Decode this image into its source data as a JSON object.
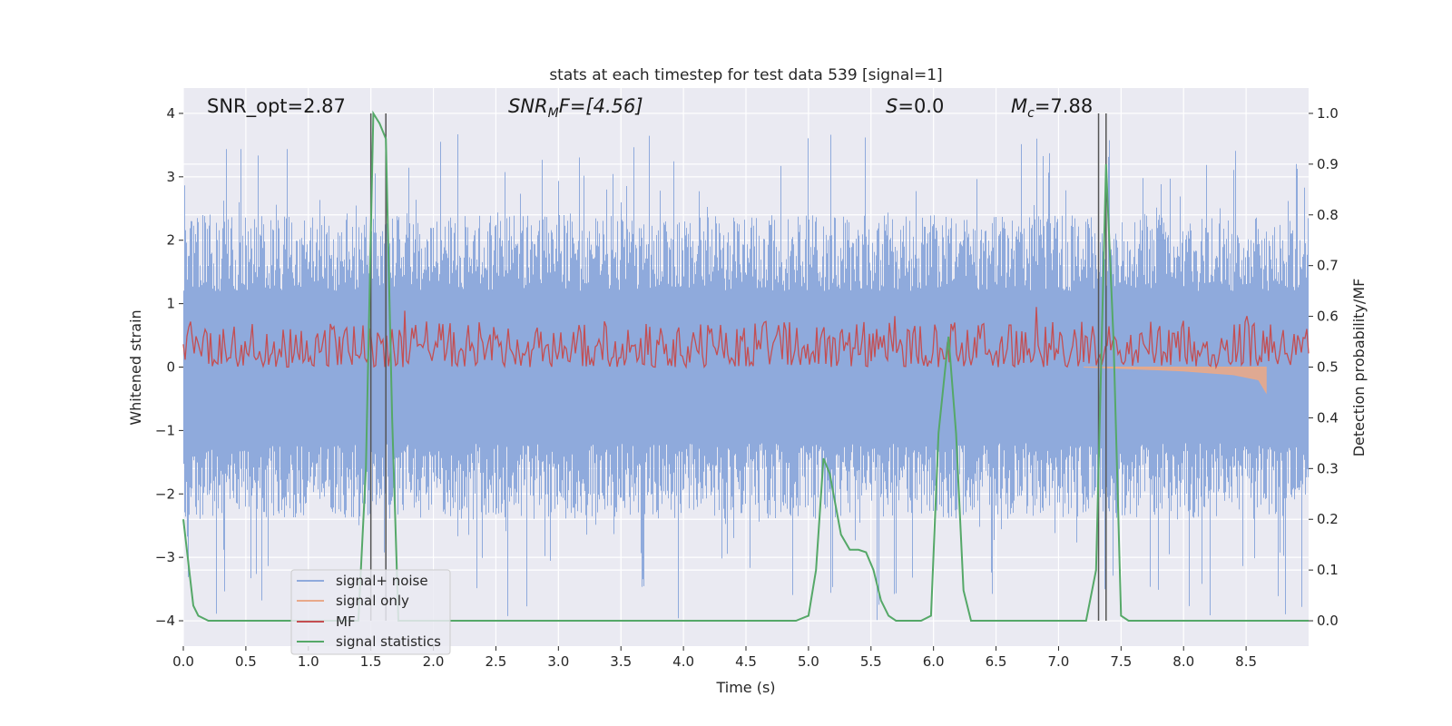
{
  "chart_data": {
    "type": "line",
    "title": "stats at each timestep for test data 539 [signal=1]",
    "xlabel": "Time (s)",
    "ylabel_left": "Whitened strain",
    "ylabel_right": "Detection probability/MF",
    "xlim": [
      0.0,
      9.0
    ],
    "ylim_left": [
      -4.4,
      4.4
    ],
    "ylim_right": [
      -0.05,
      1.05
    ],
    "x_ticks": [
      0.0,
      0.5,
      1.0,
      1.5,
      2.0,
      2.5,
      3.0,
      3.5,
      4.0,
      4.5,
      5.0,
      5.5,
      6.0,
      6.5,
      7.0,
      7.5,
      8.0,
      8.5
    ],
    "x_tick_labels": [
      "0.0",
      "0.5",
      "1.0",
      "1.5",
      "2.0",
      "2.5",
      "3.0",
      "3.5",
      "4.0",
      "4.5",
      "5.0",
      "5.5",
      "6.0",
      "6.5",
      "7.0",
      "7.5",
      "8.0",
      "8.5"
    ],
    "y_left_ticks": [
      -4,
      -3,
      -2,
      -1,
      0,
      1,
      2,
      3,
      4
    ],
    "y_left_tick_labels": [
      "−4",
      "−3",
      "−2",
      "−1",
      "0",
      "1",
      "2",
      "3",
      "4"
    ],
    "y_right_ticks": [
      0.0,
      0.1,
      0.2,
      0.3,
      0.4,
      0.5,
      0.6,
      0.7,
      0.8,
      0.9,
      1.0
    ],
    "y_right_tick_labels": [
      "0.0",
      "0.1",
      "0.2",
      "0.3",
      "0.4",
      "0.5",
      "0.6",
      "0.7",
      "0.8",
      "0.9",
      "1.0"
    ],
    "grid": true,
    "legend_position": "lower-left",
    "annotations": {
      "snr_opt": "SNR_opt=2.87",
      "snr_mf_main": "SNR",
      "snr_mf_sub": "M",
      "snr_mf_rest": "F=[4.56]",
      "s": "S",
      "s_rest": "=0.0",
      "mc_main": "M",
      "mc_sub": "c",
      "mc_rest": "=7.88"
    },
    "vertical_lines": [
      1.5,
      1.62,
      7.32,
      7.38
    ],
    "series": [
      {
        "name": "signal+ noise",
        "color": "#8faadc",
        "axis": "left",
        "description_of_shape": "dense noise",
        "envelope": {
          "typical_abs": 2.4,
          "max_peak": 3.7,
          "min_trough": -4.0
        }
      },
      {
        "name": "signal only",
        "color": "#e8a98a",
        "axis": "left",
        "x": [
          7.2,
          7.5,
          8.0,
          8.4,
          8.6,
          8.66
        ],
        "y": [
          0.0,
          -0.02,
          -0.06,
          -0.12,
          -0.2,
          -0.4
        ]
      },
      {
        "name": "MF",
        "color": "#c44e52",
        "axis": "right",
        "band": {
          "min": 0.5,
          "max": 0.59,
          "typical": 0.53
        }
      },
      {
        "name": "signal statistics",
        "color": "#55a868",
        "axis": "right",
        "x": [
          0.0,
          0.08,
          0.12,
          0.2,
          0.4,
          0.6,
          1.0,
          1.4,
          1.46,
          1.52,
          1.57,
          1.62,
          1.67,
          1.72,
          2.0,
          3.0,
          4.0,
          4.9,
          5.0,
          5.06,
          5.12,
          5.17,
          5.26,
          5.33,
          5.4,
          5.46,
          5.52,
          5.58,
          5.64,
          5.7,
          5.8,
          5.9,
          5.98,
          6.04,
          6.12,
          6.18,
          6.24,
          6.3,
          7.0,
          7.22,
          7.3,
          7.38,
          7.44,
          7.5,
          7.56,
          8.0,
          9.0
        ],
        "y": [
          0.2,
          0.03,
          0.01,
          0.0,
          0.0,
          0.0,
          0.0,
          0.0,
          0.3,
          1.0,
          0.98,
          0.95,
          0.4,
          0.0,
          0.0,
          0.0,
          0.0,
          0.0,
          0.01,
          0.1,
          0.32,
          0.29,
          0.17,
          0.14,
          0.14,
          0.135,
          0.1,
          0.04,
          0.01,
          0.0,
          0.0,
          0.0,
          0.01,
          0.37,
          0.56,
          0.37,
          0.06,
          0.0,
          0.0,
          0.0,
          0.1,
          0.9,
          0.55,
          0.01,
          0.0,
          0.0,
          0.0
        ]
      }
    ]
  }
}
